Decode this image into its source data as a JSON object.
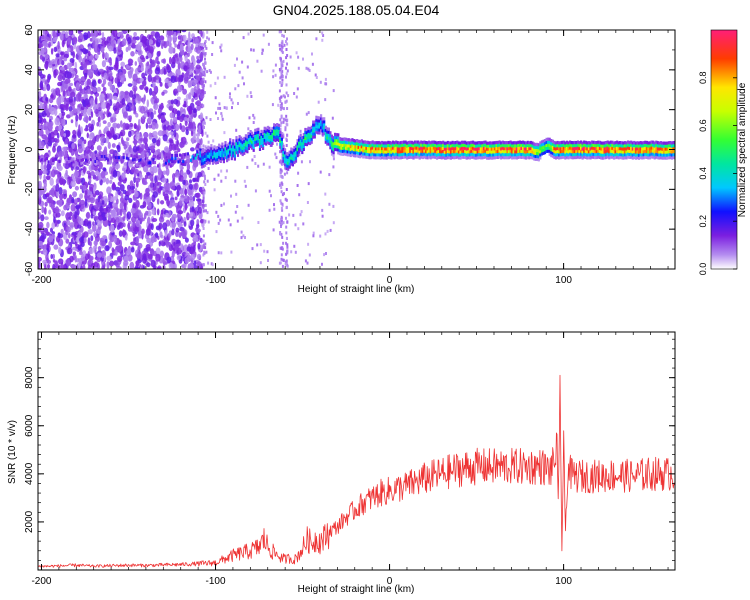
{
  "chart_data": [
    {
      "type": "heatmap",
      "title": "GN04.2025.188.05.04.E04",
      "xlabel": "Height of straight line (km)",
      "ylabel": "Frequency (Hz)",
      "xlim": [
        -202,
        164
      ],
      "ylim": [
        -60,
        60
      ],
      "xticks": [
        "-200",
        "-100",
        "0",
        "100"
      ],
      "yticks": [
        "-60",
        "-40",
        "-20",
        "0",
        "20",
        "40",
        "60"
      ],
      "colorbar": {
        "label": "Normalized spectral amplitude",
        "range": [
          0,
          1
        ],
        "ticks": [
          "0.0",
          "0.2",
          "0.4",
          "0.6",
          "0.8"
        ]
      },
      "ridge": {
        "x": [
          -200,
          -180,
          -160,
          -140,
          -120,
          -110,
          -100,
          -90,
          -80,
          -70,
          -65,
          -60,
          -55,
          -50,
          -45,
          -40,
          -35,
          -30,
          -20,
          -10,
          0,
          20,
          40,
          60,
          80,
          85,
          90,
          95,
          100,
          120,
          140,
          164
        ],
        "frequency": [
          -5,
          -6,
          -4,
          -6,
          -5,
          -4,
          -2,
          0,
          4,
          6,
          10,
          -6,
          -2,
          4,
          9,
          14,
          4,
          2,
          1,
          0,
          0,
          0,
          0,
          0,
          0,
          -1,
          2,
          0,
          0,
          0,
          0,
          0
        ],
        "amplitude": [
          0.15,
          0.15,
          0.2,
          0.2,
          0.3,
          0.35,
          0.35,
          0.45,
          0.45,
          0.45,
          0.5,
          0.45,
          0.45,
          0.5,
          0.45,
          0.35,
          0.5,
          0.7,
          0.8,
          0.85,
          0.9,
          0.95,
          0.95,
          0.95,
          0.95,
          0.7,
          0.6,
          0.9,
          0.95,
          0.95,
          0.9,
          0.85
        ]
      }
    },
    {
      "type": "line",
      "xlabel": "Height of straight line (km)",
      "ylabel": "SNR (10 * v/v)",
      "xlim": [
        -202,
        164
      ],
      "ylim": [
        0,
        9900
      ],
      "xticks": [
        "-200",
        "-100",
        "0",
        "100"
      ],
      "yticks": [
        "2000",
        "4000",
        "6000",
        "8000"
      ],
      "color": "#ee3333",
      "series": [
        {
          "x": [
            -202,
            -190,
            -180,
            -170,
            -160,
            -150,
            -140,
            -130,
            -120,
            -110,
            -100,
            -95,
            -90,
            -85,
            -80,
            -75,
            -72,
            -70,
            -68,
            -65,
            -62,
            -60,
            -57,
            -55,
            -52,
            -50,
            -47,
            -45,
            -42,
            -40,
            -37,
            -35,
            -30,
            -25,
            -20,
            -15,
            -10,
            -5,
            0,
            5,
            10,
            20,
            30,
            40,
            50,
            60,
            70,
            80,
            88,
            92,
            95,
            96,
            97,
            98,
            99,
            100,
            101,
            102,
            103,
            105,
            110,
            120,
            130,
            140,
            150,
            164
          ],
          "y": [
            150,
            170,
            200,
            160,
            180,
            200,
            190,
            210,
            230,
            260,
            300,
            450,
            600,
            700,
            800,
            950,
            1300,
            1000,
            800,
            650,
            500,
            450,
            500,
            400,
            650,
            900,
            1300,
            1100,
            1300,
            1200,
            1350,
            1600,
            1800,
            2200,
            2500,
            2800,
            3000,
            3200,
            3300,
            3400,
            3500,
            3800,
            4000,
            4200,
            4300,
            4300,
            4300,
            4300,
            4300,
            4100,
            4500,
            5500,
            2200,
            7800,
            800,
            5200,
            1500,
            3600,
            4200,
            3900,
            3900,
            3900,
            3950,
            3900,
            4000,
            4000
          ]
        }
      ]
    }
  ]
}
